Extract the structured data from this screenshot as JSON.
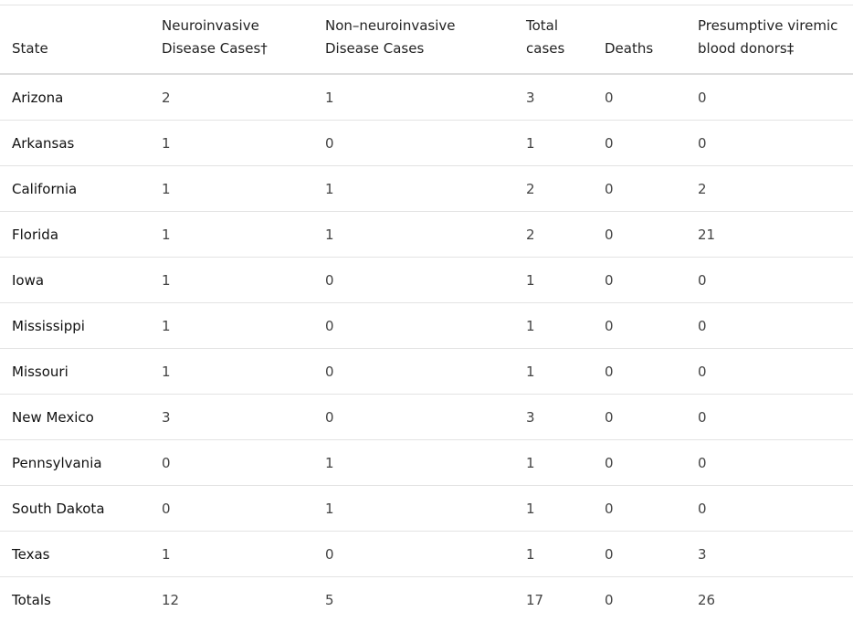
{
  "table": {
    "headers": [
      [
        "State"
      ],
      [
        "Neuroinvasive",
        "Disease Cases†"
      ],
      [
        "Non–neuroinvasive",
        "Disease Cases"
      ],
      [
        "Total",
        "cases"
      ],
      [
        "Deaths"
      ],
      [
        "Presumptive viremic",
        "blood donors‡"
      ]
    ],
    "rows": [
      [
        "Arizona",
        2,
        1,
        3,
        0,
        0
      ],
      [
        "Arkansas",
        1,
        0,
        1,
        0,
        0
      ],
      [
        "California",
        1,
        1,
        2,
        0,
        2
      ],
      [
        "Florida",
        1,
        1,
        2,
        0,
        21
      ],
      [
        "Iowa",
        1,
        0,
        1,
        0,
        0
      ],
      [
        "Mississippi",
        1,
        0,
        1,
        0,
        0
      ],
      [
        "Missouri",
        1,
        0,
        1,
        0,
        0
      ],
      [
        "New Mexico",
        3,
        0,
        3,
        0,
        0
      ],
      [
        "Pennsylvania",
        0,
        1,
        1,
        0,
        0
      ],
      [
        "South Dakota",
        0,
        1,
        1,
        0,
        0
      ],
      [
        "Texas",
        1,
        0,
        1,
        0,
        3
      ],
      [
        "Totals",
        12,
        5,
        17,
        0,
        26
      ]
    ]
  }
}
